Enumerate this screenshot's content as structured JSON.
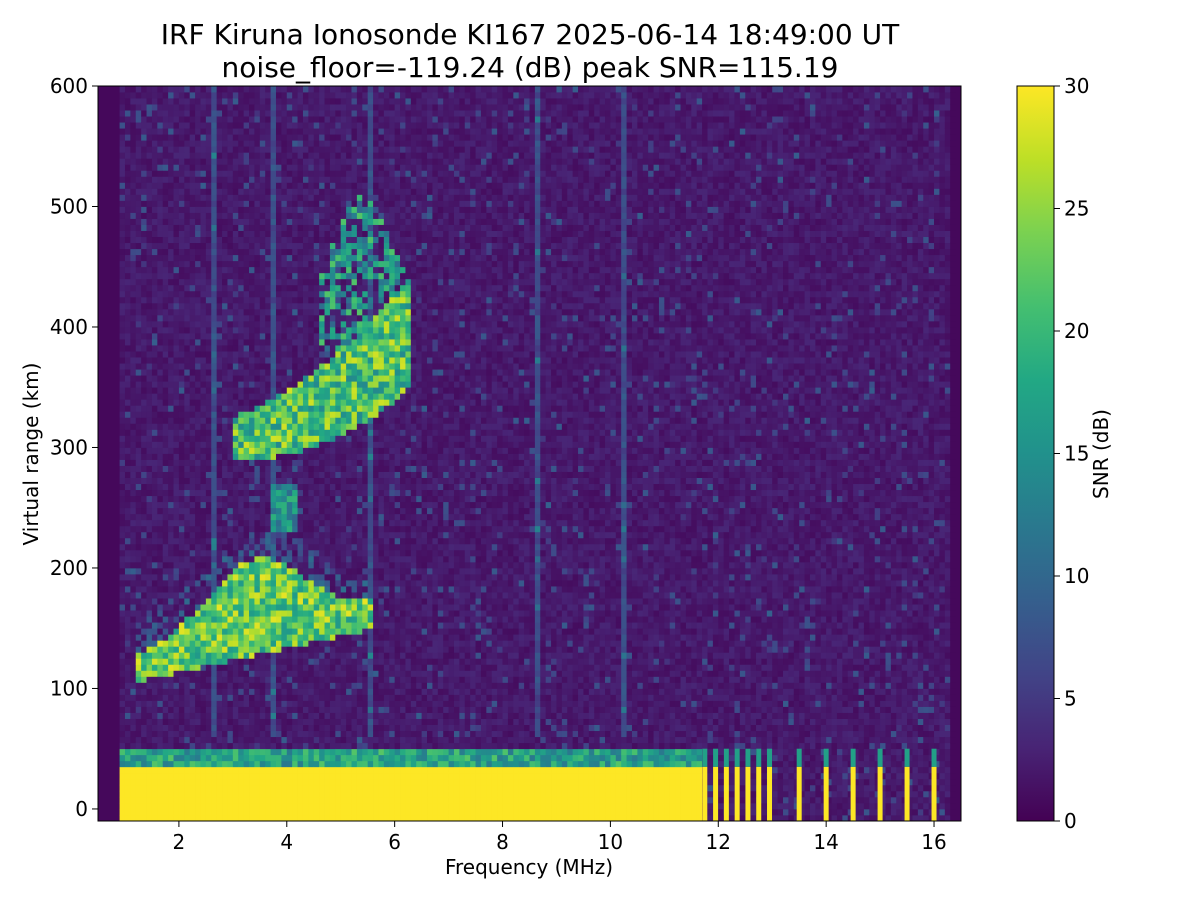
{
  "chart_data": {
    "type": "heatmap",
    "title": "IRF Kiruna Ionosonde KI167 2025-06-14 18:49:00  UT",
    "subtitle": "noise_floor=-119.24 (dB) peak SNR=115.19",
    "xlabel": "Frequency (MHz)",
    "ylabel": "Virtual range (km)",
    "colorbar_label": "SNR (dB)",
    "colormap": "viridis",
    "xlim": [
      0.5,
      16.5
    ],
    "ylim": [
      -10,
      600
    ],
    "clim": [
      0,
      30
    ],
    "x_ticks": [
      2,
      4,
      6,
      8,
      10,
      12,
      14,
      16
    ],
    "y_ticks": [
      0,
      100,
      200,
      300,
      400,
      500,
      600
    ],
    "colorbar_ticks": [
      0,
      5,
      10,
      15,
      20,
      25,
      30
    ],
    "data_freq_range_mhz": [
      0.9,
      16.3
    ],
    "background_snr_db": 1,
    "echo_regions": [
      {
        "name": "E trace",
        "freq_mhz": [
          1.2,
          5.6
        ],
        "range_km": [
          110,
          200
        ],
        "peak_snr_db": 29
      },
      {
        "name": "F trace lower",
        "freq_mhz": [
          3.0,
          6.3
        ],
        "range_km": [
          280,
          420
        ],
        "peak_snr_db": 28
      },
      {
        "name": "F trace upper",
        "freq_mhz": [
          4.5,
          6.3
        ],
        "range_km": [
          380,
          520
        ],
        "peak_snr_db": 22
      },
      {
        "name": "blob",
        "freq_mhz": [
          3.7,
          4.2
        ],
        "range_km": [
          230,
          270
        ],
        "peak_snr_db": 20
      },
      {
        "name": "ground band",
        "freq_mhz": [
          0.9,
          11.7
        ],
        "range_km": [
          -10,
          35
        ],
        "peak_snr_db": 30
      }
    ],
    "spike_columns_mhz": [
      11.75,
      11.95,
      12.15,
      12.35,
      12.55,
      12.75,
      12.95,
      13.5,
      14.0,
      14.5,
      15.0,
      15.5,
      16.0
    ],
    "vertical_streaks_mhz": [
      2.65,
      3.75,
      5.55,
      8.65,
      10.25
    ]
  }
}
